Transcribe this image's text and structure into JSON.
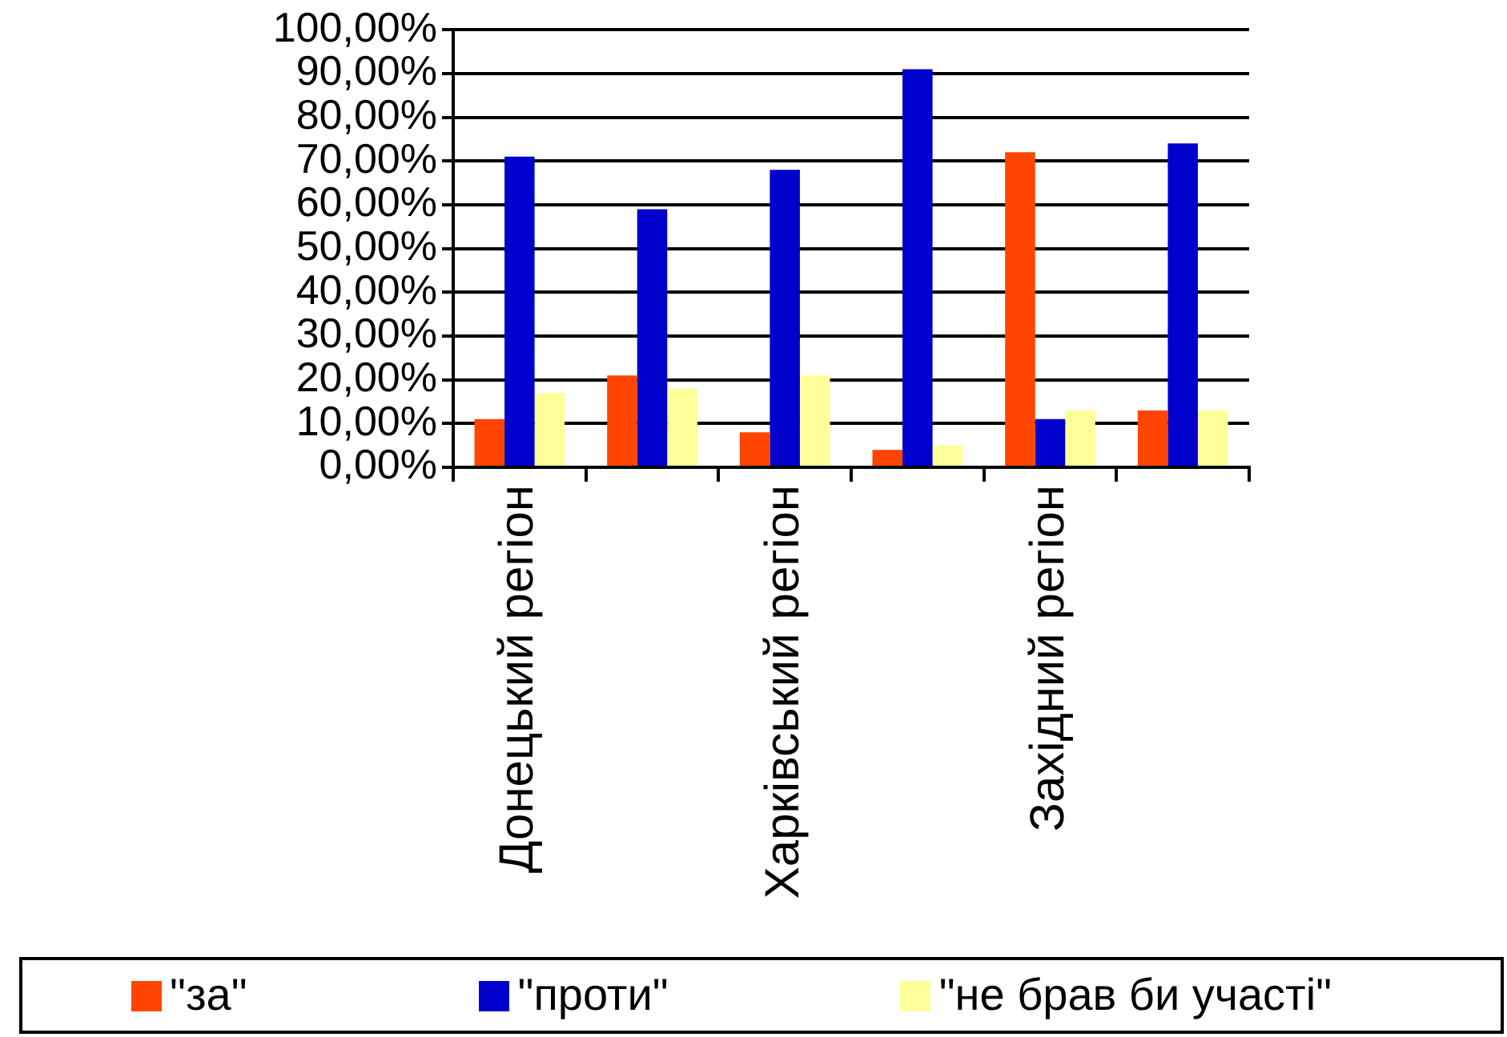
{
  "chart_data": {
    "type": "bar",
    "categories": [
      "Донецький регіон",
      null,
      "Харківський регіон",
      null,
      "Західний регіон",
      null
    ],
    "series": [
      {
        "name": "\"за\"",
        "color": "#ff4500",
        "values": [
          11,
          21,
          8,
          4,
          72,
          13
        ]
      },
      {
        "name": "\"проти\"",
        "color": "#0000cc",
        "values": [
          71,
          59,
          68,
          91,
          11,
          74
        ]
      },
      {
        "name": "\"не брав би участі\"",
        "color": "#ffff99",
        "values": [
          17,
          18,
          21,
          5,
          13,
          13
        ]
      }
    ],
    "ylim": [
      0,
      100
    ],
    "yticks": [
      {
        "value": 0,
        "label": "0,00%"
      },
      {
        "value": 10,
        "label": "10,00%"
      },
      {
        "value": 20,
        "label": "20,00%"
      },
      {
        "value": 30,
        "label": "30,00%"
      },
      {
        "value": 40,
        "label": "40,00%"
      },
      {
        "value": 50,
        "label": "50,00%"
      },
      {
        "value": 60,
        "label": "60,00%"
      },
      {
        "value": 70,
        "label": "70,00%"
      },
      {
        "value": 80,
        "label": "80,00%"
      },
      {
        "value": 90,
        "label": "90,00%"
      },
      {
        "value": 100,
        "label": "100,00%"
      }
    ],
    "grid": "y",
    "legend": "bottom"
  }
}
